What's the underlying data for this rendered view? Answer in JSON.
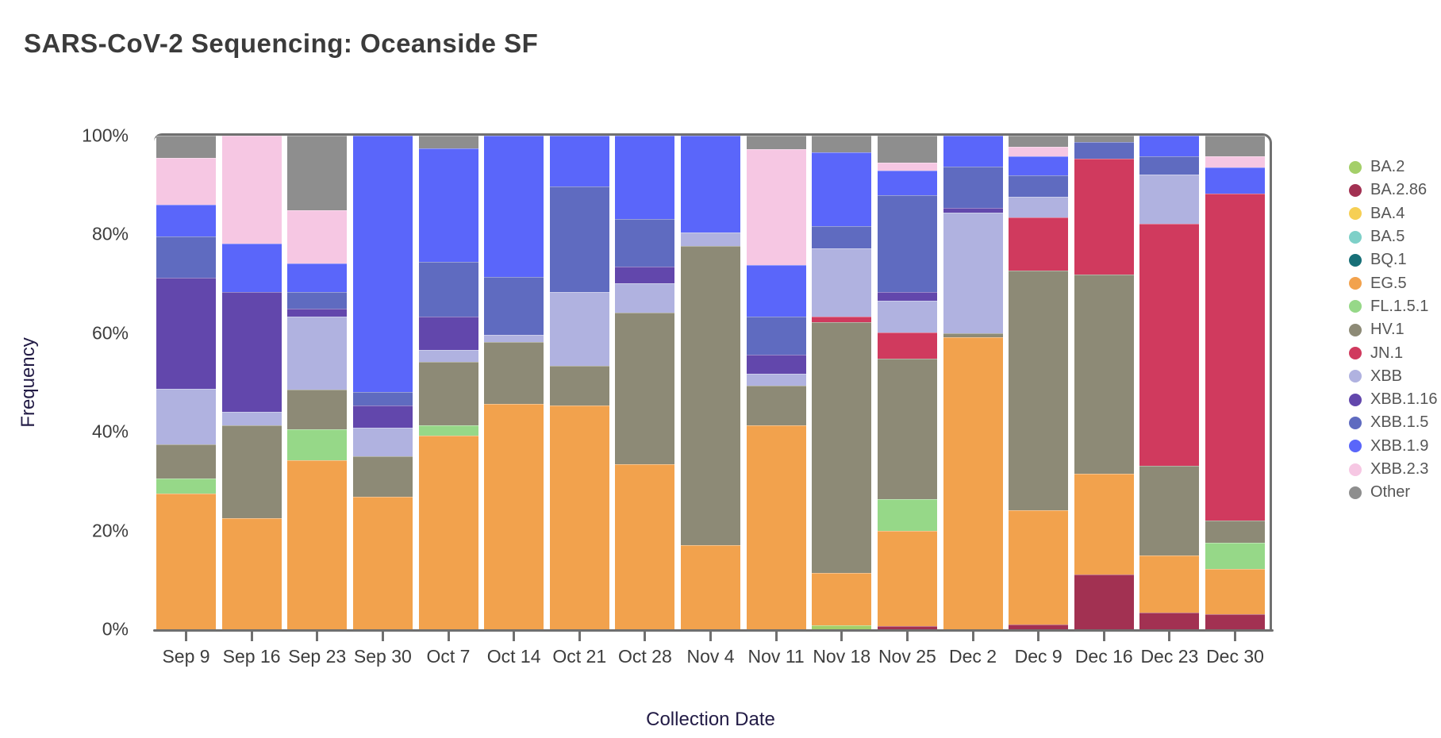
{
  "title": "SARS-CoV-2 Sequencing: Oceanside SF",
  "x_axis": {
    "label": "Collection Date"
  },
  "y_axis": {
    "label": "Frequency",
    "ticks": [
      {
        "label": "100%",
        "value": 100
      },
      {
        "label": "80%",
        "value": 80
      },
      {
        "label": "60%",
        "value": 60
      },
      {
        "label": "40%",
        "value": 40
      },
      {
        "label": "20%",
        "value": 20
      },
      {
        "label": "0%",
        "value": 0
      }
    ]
  },
  "legend_position": "right",
  "chart_data": {
    "type": "bar",
    "stacked": true,
    "normalized_percent": true,
    "title": "SARS-CoV-2 Sequencing: Oceanside SF",
    "xlabel": "Collection Date",
    "ylabel": "Frequency",
    "ylim": [
      0,
      100
    ],
    "grid": false,
    "categories": [
      "Sep 9",
      "Sep 16",
      "Sep 23",
      "Sep 30",
      "Oct 7",
      "Oct 14",
      "Oct 21",
      "Oct 28",
      "Nov 4",
      "Nov 11",
      "Nov 18",
      "Nov 25",
      "Dec 2",
      "Dec 9",
      "Dec 16",
      "Dec 23",
      "Dec 30"
    ],
    "series": [
      {
        "name": "BA.2",
        "color": "#a4cf69",
        "values": [
          0,
          0,
          0,
          0,
          0,
          0,
          0,
          0,
          0,
          0,
          0.8,
          0,
          0,
          0,
          0,
          0,
          0
        ]
      },
      {
        "name": "BA.2.86",
        "color": "#a23152",
        "values": [
          0,
          0,
          0,
          0,
          0,
          0,
          0,
          0,
          0,
          0,
          0,
          0.7,
          0,
          0.9,
          11.1,
          3.3,
          3.1
        ]
      },
      {
        "name": "BA.4",
        "color": "#f6cf54",
        "values": [
          0,
          0,
          0,
          0,
          0,
          0,
          0,
          0,
          0,
          0,
          0,
          0,
          0,
          0,
          0,
          0,
          0
        ]
      },
      {
        "name": "BA.5",
        "color": "#7ed0c8",
        "values": [
          0,
          0,
          0,
          0,
          0,
          0,
          0,
          0,
          0,
          0,
          0,
          0,
          0,
          0,
          0,
          0,
          0
        ]
      },
      {
        "name": "BQ.1",
        "color": "#176f77",
        "values": [
          0,
          0,
          0,
          0,
          0,
          0,
          0,
          0,
          0,
          0,
          0,
          0,
          0,
          0,
          0,
          0,
          0
        ]
      },
      {
        "name": "EG.5",
        "color": "#f2a24d",
        "values": [
          27.5,
          22.5,
          34.3,
          26.9,
          39.3,
          45.6,
          45.3,
          33.5,
          17.0,
          41.3,
          10.6,
          19.2,
          59.2,
          23.2,
          20.4,
          11.6,
          9.2
        ]
      },
      {
        "name": "FL.1.5.1",
        "color": "#96d888",
        "values": [
          3.0,
          0,
          6.2,
          0,
          2.0,
          0,
          0,
          0,
          0,
          0,
          0,
          6.4,
          0,
          0,
          0,
          0,
          5.3
        ]
      },
      {
        "name": "HV.1",
        "color": "#8d8a76",
        "values": [
          7.0,
          18.9,
          8.1,
          8.2,
          12.9,
          12.6,
          8.1,
          30.6,
          60.7,
          8.1,
          50.8,
          28.5,
          0.8,
          48.6,
          40.3,
          18.3,
          4.5
        ]
      },
      {
        "name": "JN.1",
        "color": "#d03a5e",
        "values": [
          0,
          0,
          0,
          0,
          0,
          0,
          0,
          0,
          0,
          0,
          1.2,
          5.4,
          0,
          10.7,
          23.6,
          49.0,
          66.1
        ]
      },
      {
        "name": "XBB",
        "color": "#b0b2e0",
        "values": [
          11.2,
          2.7,
          14.7,
          5.7,
          2.4,
          1.5,
          15.0,
          6.0,
          2.7,
          2.3,
          13.8,
          6.4,
          24.4,
          4.3,
          0,
          10.0,
          0
        ]
      },
      {
        "name": "XBB.1.16",
        "color": "#6247ac",
        "values": [
          22.6,
          24.3,
          1.7,
          4.5,
          6.7,
          0,
          0,
          3.4,
          0,
          4.0,
          0,
          1.7,
          0.9,
          0,
          0,
          0,
          0
        ]
      },
      {
        "name": "XBB.1.5",
        "color": "#5f6bc0",
        "values": [
          8.3,
          0,
          3.3,
          2.8,
          11.2,
          11.7,
          21.3,
          9.7,
          0,
          7.6,
          4.5,
          19.7,
          8.5,
          4.3,
          3.3,
          3.6,
          0
        ]
      },
      {
        "name": "XBB.1.9",
        "color": "#5a66fa",
        "values": [
          6.4,
          9.8,
          5.8,
          51.9,
          23.0,
          28.6,
          10.3,
          16.8,
          19.6,
          10.5,
          14.9,
          5.0,
          6.2,
          3.8,
          0,
          4.2,
          5.3
        ]
      },
      {
        "name": "XBB.2.3",
        "color": "#f6c7e3",
        "values": [
          9.5,
          21.8,
          10.8,
          0,
          0,
          0,
          0,
          0,
          0,
          23.5,
          0,
          1.5,
          0,
          1.9,
          0,
          0,
          2.4
        ]
      },
      {
        "name": "Other",
        "color": "#8e8e8e",
        "values": [
          4.5,
          0,
          15.1,
          0,
          2.5,
          0,
          0,
          0,
          0,
          2.7,
          3.4,
          5.5,
          0,
          2.3,
          1.3,
          0,
          4.1
        ]
      }
    ]
  }
}
